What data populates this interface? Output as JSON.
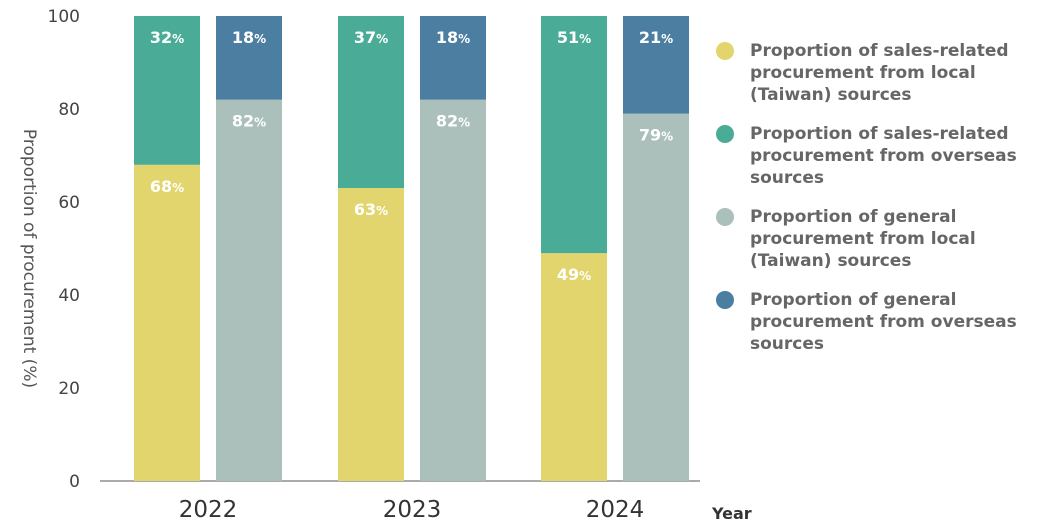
{
  "chart_data": {
    "type": "bar",
    "stacked": true,
    "categories": [
      "2022",
      "2023",
      "2024"
    ],
    "ylabel": "Proportion of procurement (%)",
    "xlabel": "Year",
    "ylim": [
      0,
      100
    ],
    "yticks": [
      "0",
      "20",
      "40",
      "60",
      "80",
      "100"
    ],
    "grid": false,
    "legend_position": "right",
    "groups": [
      {
        "stack": "sales-related",
        "segments": [
          {
            "name": "Proportion of sales-related procurement from local (Taiwan) sources",
            "values": [
              68,
              63,
              49
            ],
            "color": "#e3d56d",
            "labels": [
              "68",
              "63",
              "49"
            ]
          },
          {
            "name": "Proportion of sales-related procurement from overseas sources",
            "values": [
              32,
              37,
              51
            ],
            "color": "#4aac96",
            "labels": [
              "32",
              "37",
              "51"
            ]
          }
        ]
      },
      {
        "stack": "general",
        "segments": [
          {
            "name": "Proportion of general procurement from local (Taiwan) sources",
            "values": [
              82,
              82,
              79
            ],
            "color": "#abc0bb",
            "labels": [
              "82",
              "82",
              "79"
            ]
          },
          {
            "name": "Proportion of general procurement from overseas sources",
            "values": [
              18,
              18,
              21
            ],
            "color": "#4b7ea1",
            "labels": [
              "18",
              "18",
              "21"
            ]
          }
        ]
      }
    ],
    "label_suffix": "%",
    "legend": [
      {
        "lines": [
          "Proportion of sales-related",
          "procurement from local",
          "(Taiwan) sources"
        ],
        "color": "#e3d56d"
      },
      {
        "lines": [
          "Proportion of sales-related",
          "procurement from overseas",
          "sources"
        ],
        "color": "#4aac96"
      },
      {
        "lines": [
          "Proportion of general",
          "procurement from local",
          "(Taiwan) sources"
        ],
        "color": "#abc0bb"
      },
      {
        "lines": [
          "Proportion of general",
          "procurement from overseas",
          "sources"
        ],
        "color": "#4b7ea1"
      }
    ]
  }
}
